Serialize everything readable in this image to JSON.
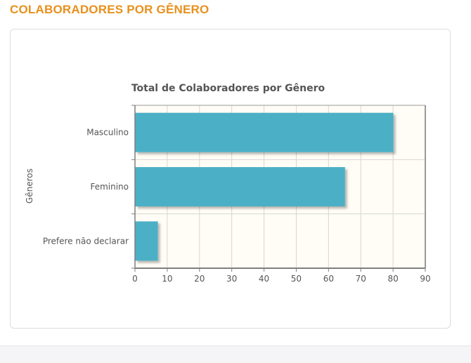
{
  "page": {
    "section_title": "COLABORADORES POR GÊNERO"
  },
  "colors": {
    "accent": "#e8901c",
    "bar": "#4bb0c6",
    "plot_background": "#fffdf5",
    "grid": "#d6d6d6",
    "axis": "#7f7f7f"
  },
  "chart_data": {
    "type": "bar",
    "orientation": "horizontal",
    "title": "Total de Colaboradores por Gênero",
    "ylabel": "Gêneros",
    "xlabel": "",
    "categories": [
      "Masculino",
      "Feminino",
      "Prefere não declarar"
    ],
    "values": [
      80,
      65,
      7
    ],
    "xlim": [
      0,
      90
    ],
    "xticks": [
      0,
      10,
      20,
      30,
      40,
      50,
      60,
      70,
      80,
      90
    ],
    "grid": true,
    "legend": "none"
  }
}
